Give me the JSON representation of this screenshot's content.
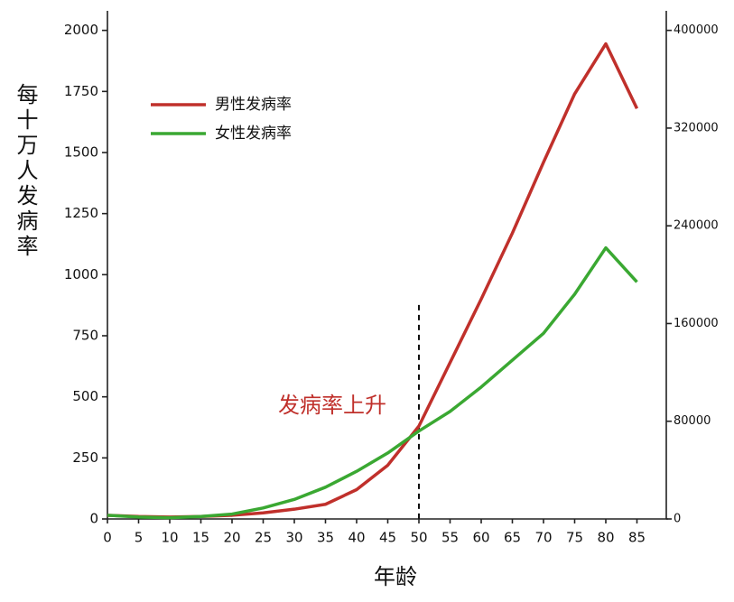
{
  "chart_data": {
    "type": "line",
    "y_label": "每十万人发病率",
    "x_label": "年龄",
    "annotation": "发病率上升",
    "x": [
      0,
      5,
      10,
      15,
      20,
      25,
      30,
      35,
      40,
      45,
      50,
      55,
      60,
      65,
      70,
      75,
      80,
      85
    ],
    "series": [
      {
        "name": "男性发病率",
        "color": "#c0302b",
        "values": [
          15,
          10,
          8,
          10,
          15,
          25,
          40,
          60,
          120,
          220,
          380,
          640,
          900,
          1170,
          1460,
          1740,
          1945,
          1680
        ]
      },
      {
        "name": "女性发病率",
        "color": "#3aa832",
        "values": [
          15,
          8,
          5,
          10,
          20,
          45,
          80,
          130,
          195,
          270,
          360,
          440,
          540,
          650,
          760,
          920,
          1110,
          970
        ]
      }
    ],
    "vline": {
      "x": 50,
      "top": 876
    },
    "xlim": [
      0,
      90
    ],
    "xticks": [
      0,
      5,
      10,
      15,
      20,
      25,
      30,
      35,
      40,
      45,
      50,
      55,
      60,
      65,
      70,
      75,
      80,
      85
    ],
    "ylim": [
      0,
      2080
    ],
    "yticks": [
      0,
      250,
      500,
      750,
      1000,
      1250,
      1500,
      1750,
      2000
    ],
    "y2lim": [
      0,
      416000
    ],
    "y2ticks": [
      0,
      80000,
      160000,
      240000,
      320000,
      400000
    ],
    "legend": "upper left"
  }
}
